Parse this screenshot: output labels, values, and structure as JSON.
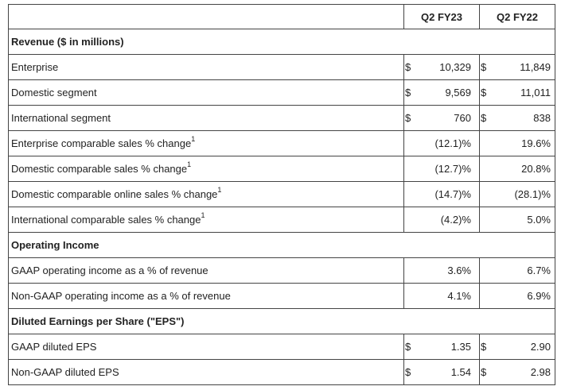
{
  "header": {
    "col1": "Q2 FY23",
    "col2": "Q2 FY22"
  },
  "sections": {
    "revenue": "Revenue ($ in millions)",
    "operating": "Operating Income",
    "eps": "Diluted Earnings per Share (\"EPS\")"
  },
  "rows": [
    {
      "label": "Enterprise",
      "sup": "",
      "c1": "$",
      "v1": "10,329",
      "c2": "$",
      "v2": "11,849"
    },
    {
      "label": "Domestic segment",
      "sup": "",
      "c1": "$",
      "v1": "9,569",
      "c2": "$",
      "v2": "11,011"
    },
    {
      "label": "International segment",
      "sup": "",
      "c1": "$",
      "v1": "760",
      "c2": "$",
      "v2": "838"
    },
    {
      "label": "Enterprise comparable sales % change",
      "sup": "1",
      "v1": "(12.1)%",
      "v2": "19.6%"
    },
    {
      "label": "Domestic comparable sales % change",
      "sup": "1",
      "v1": "(12.7)%",
      "v2": "20.8%"
    },
    {
      "label": "Domestic comparable online sales % change",
      "sup": "1",
      "v1": "(14.7)%",
      "v2": "(28.1)%"
    },
    {
      "label": "International comparable sales % change",
      "sup": "1",
      "v1": "(4.2)%",
      "v2": "5.0%"
    },
    {
      "label": "GAAP operating income as a % of revenue",
      "v1": "3.6%",
      "v2": "6.7%"
    },
    {
      "label": "Non-GAAP operating income as a % of revenue",
      "v1": "4.1%",
      "v2": "6.9%"
    },
    {
      "label": "GAAP diluted EPS",
      "c1": "$",
      "v1": "1.35",
      "c2": "$",
      "v2": "2.90"
    },
    {
      "label": "Non-GAAP diluted EPS",
      "c1": "$",
      "v1": "1.54",
      "c2": "$",
      "v2": "2.98"
    }
  ]
}
